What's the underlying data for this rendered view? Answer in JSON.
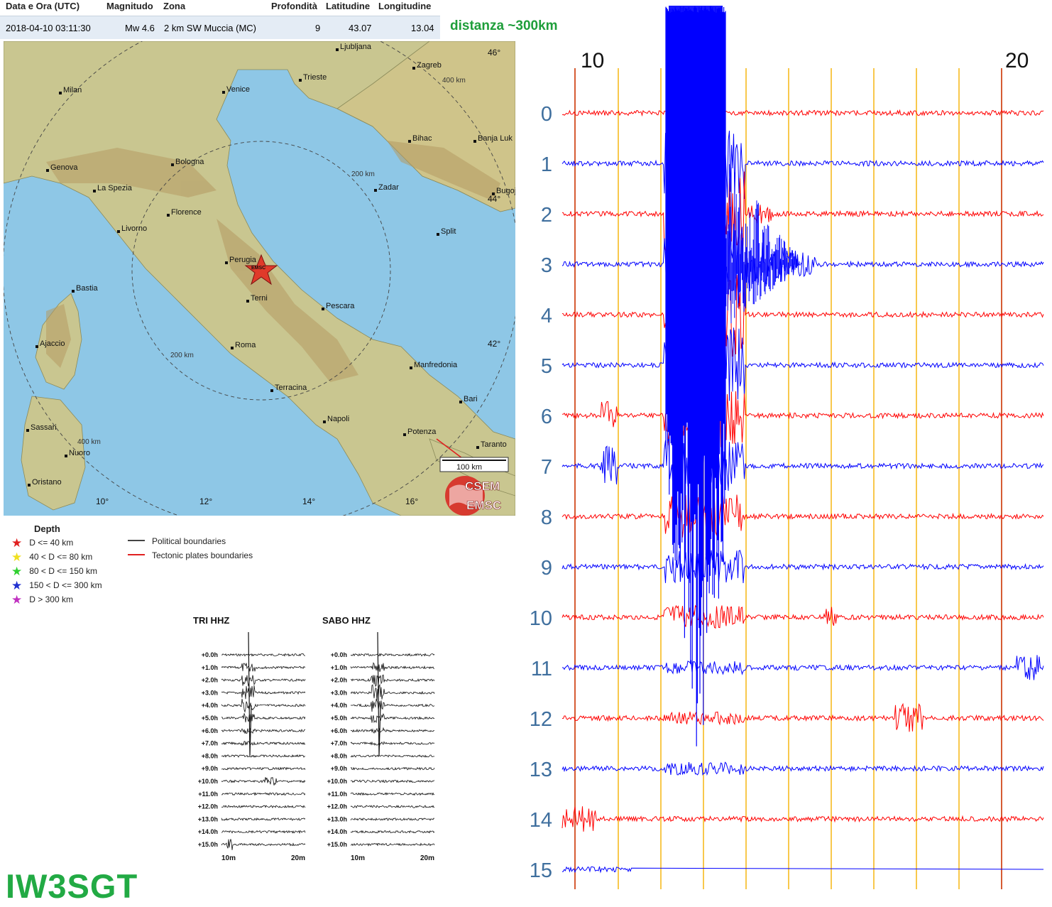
{
  "event_table": {
    "headers": [
      "Data e Ora (UTC)",
      "Magnitudo",
      "Zona",
      "Profondità",
      "Latitudine",
      "Longitudine"
    ],
    "row": {
      "datetime": "2018-04-10 03:11:30",
      "magnitude": "Mw 4.6",
      "zone": "2 km SW Muccia (MC)",
      "depth": "9",
      "lat": "43.07",
      "lon": "13.04"
    }
  },
  "distance_note": "distanza ~300km",
  "map": {
    "cities": [
      "Ljubljana",
      "Zagreb",
      "Milan",
      "Venice",
      "Trieste",
      "Bihac",
      "Banja Luk",
      "Bologna",
      "Genova",
      "La Spezia",
      "Zadar",
      "Bugoj",
      "Florence",
      "Livorno",
      "Split",
      "Perugia",
      "Bastia",
      "Terni",
      "Pescara",
      "Ajaccio",
      "Roma",
      "Manfredonia",
      "Terracina",
      "Bari",
      "Sassari",
      "Napoli",
      "Potenza",
      "Taranto",
      "Nuoro",
      "Oristano"
    ],
    "lat_labels": [
      "46°",
      "44°",
      "42°"
    ],
    "lon_labels": [
      "10°",
      "12°",
      "14°",
      "16°"
    ],
    "ring_labels": [
      "400 km",
      "200 km",
      "200 km",
      "400 km"
    ],
    "epicenter_label": "EMSC",
    "scale_label": "100 km",
    "logo": [
      "CSEM",
      "EMSC"
    ]
  },
  "legend": {
    "title": "Depth",
    "items": [
      {
        "label": "D <= 40 km",
        "color": "#e02020"
      },
      {
        "label": "40 < D <= 80 km",
        "color": "#f0e020"
      },
      {
        "label": "80 < D <= 150 km",
        "color": "#30d030"
      },
      {
        "label": "150 < D <= 300 km",
        "color": "#2030d0"
      },
      {
        "label": "D > 300 km",
        "color": "#c030c0"
      }
    ],
    "lines": [
      {
        "label": "Political boundaries",
        "color": "#444444"
      },
      {
        "label": "Tectonic plates boundaries",
        "color": "#e02020"
      }
    ]
  },
  "mini_plots": [
    {
      "title": "TRI HHZ",
      "rows": [
        "+0.0h",
        "+1.0h",
        "+2.0h",
        "+3.0h",
        "+4.0h",
        "+5.0h",
        "+6.0h",
        "+7.0h",
        "+8.0h",
        "+9.0h",
        "+10.0h",
        "+11.0h",
        "+12.0h",
        "+13.0h",
        "+14.0h",
        "+15.0h"
      ],
      "x_ticks": [
        "10m",
        "20m"
      ]
    },
    {
      "title": "SABO HHZ",
      "rows": [
        "+0.0h",
        "+1.0h",
        "+2.0h",
        "+3.0h",
        "+4.0h",
        "+5.0h",
        "+6.0h",
        "+7.0h",
        "+8.0h",
        "+9.0h",
        "+10.0h",
        "+11.0h",
        "+12.0h",
        "+13.0h",
        "+14.0h",
        "+15.0h"
      ],
      "x_ticks": [
        "10m",
        "20m"
      ]
    }
  ],
  "seismogram": {
    "minute_labels": [
      "10",
      "20"
    ],
    "row_labels": [
      "0",
      "1",
      "2",
      "3",
      "4",
      "5",
      "6",
      "7",
      "8",
      "9",
      "10",
      "11",
      "12",
      "13",
      "14",
      "15"
    ],
    "trace_colors": [
      "#ff0000",
      "#0000ff"
    ],
    "grid_color": "#f5b000",
    "major_color": "#cc3300"
  },
  "callsign": "IW3SGT"
}
